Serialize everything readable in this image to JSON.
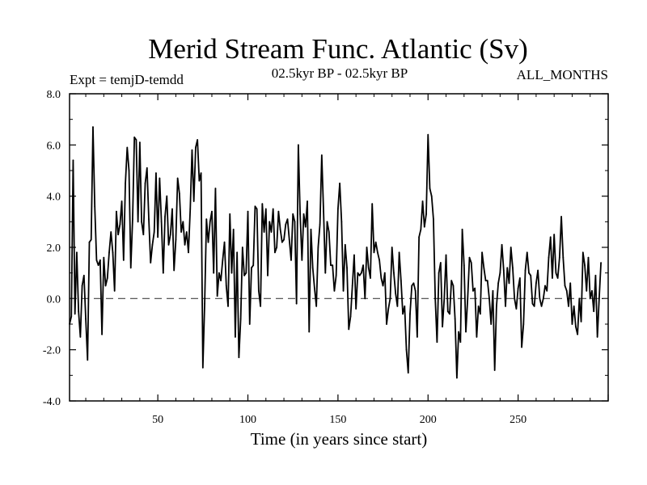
{
  "chart_data": {
    "type": "line",
    "title": "Merid Stream Func. Atlantic (Sv)",
    "subtitle_left": "Expt = temjD-temdd",
    "subtitle_center": "02.5kyr BP - 02.5kyr BP",
    "subtitle_right": "ALL_MONTHS",
    "xlabel": "Time (in years since start)",
    "ylabel": "",
    "xlim": [
      1,
      300
    ],
    "ylim": [
      -4.0,
      8.0
    ],
    "x_ticks": [
      50,
      100,
      150,
      200,
      250
    ],
    "x_tick_labels": [
      "50",
      "100",
      "150",
      "200",
      "250"
    ],
    "y_ticks": [
      -4.0,
      -2.0,
      0.0,
      2.0,
      4.0,
      6.0,
      8.0
    ],
    "y_tick_labels": [
      "-4.0",
      "-2.0",
      "0.0",
      "2.0",
      "4.0",
      "6.0",
      "8.0"
    ],
    "zero_line": 0.0,
    "series": [
      {
        "name": "Merid Stream Func. Atlantic",
        "x_start": 1,
        "values": [
          -1.0,
          -0.7,
          5.4,
          -0.6,
          1.8,
          -0.5,
          -1.5,
          0.5,
          0.9,
          -0.8,
          -2.4,
          2.2,
          2.3,
          6.7,
          3.6,
          1.5,
          1.3,
          1.5,
          -1.4,
          1.6,
          0.5,
          0.8,
          1.8,
          2.6,
          1.8,
          0.3,
          3.4,
          2.5,
          2.9,
          3.8,
          1.5,
          4.5,
          5.9,
          5.0,
          1.2,
          3.1,
          6.3,
          6.2,
          3.0,
          6.1,
          3.0,
          2.5,
          4.5,
          5.1,
          3.1,
          1.4,
          2.1,
          2.6,
          4.9,
          2.4,
          4.7,
          3.0,
          1.0,
          3.2,
          4.0,
          2.1,
          2.5,
          3.5,
          1.1,
          2.3,
          4.7,
          4.1,
          2.6,
          3.0,
          2.1,
          2.6,
          1.8,
          3.5,
          5.8,
          3.8,
          5.9,
          6.2,
          4.6,
          4.9,
          -2.7,
          -0.2,
          3.1,
          2.2,
          3.0,
          3.4,
          1.0,
          4.3,
          0.1,
          1.0,
          0.7,
          1.5,
          2.2,
          0.5,
          -0.3,
          3.3,
          1.0,
          2.7,
          -1.5,
          1.8,
          -2.3,
          -0.8,
          2.0,
          0.9,
          1.0,
          3.4,
          -1.0,
          1.2,
          1.3,
          3.6,
          3.5,
          0.3,
          -0.3,
          3.7,
          2.6,
          3.5,
          0.9,
          3.0,
          2.6,
          3.5,
          1.8,
          2.0,
          3.4,
          2.7,
          2.2,
          2.3,
          2.9,
          3.1,
          2.3,
          1.5,
          3.3,
          3.0,
          -0.2,
          6.0,
          3.3,
          1.5,
          3.3,
          2.8,
          3.8,
          -1.3,
          2.7,
          1.2,
          0.4,
          -0.3,
          2.0,
          2.9,
          5.6,
          3.4,
          1.0,
          3.0,
          2.6,
          1.3,
          1.3,
          0.3,
          0.9,
          3.5,
          4.5,
          3.0,
          0.3,
          2.1,
          1.2,
          -1.2,
          -0.7,
          0.5,
          1.7,
          -0.4,
          1.0,
          0.9,
          1.0,
          1.3,
          0.0,
          2.0,
          1.2,
          0.8,
          3.7,
          1.8,
          2.2,
          1.8,
          1.5,
          0.8,
          0.5,
          1.0,
          -1.0,
          -0.4,
          0.0,
          2.0,
          1.0,
          0.2,
          -0.3,
          1.8,
          0.7,
          -0.6,
          -0.3,
          -2.0,
          -2.9,
          -0.6,
          0.5,
          0.6,
          0.3,
          -1.5,
          2.4,
          2.7,
          3.8,
          2.8,
          3.3,
          6.4,
          4.3,
          4.0,
          3.1,
          0.0,
          -1.7,
          1.0,
          1.4,
          -1.1,
          0.0,
          1.7,
          -0.5,
          -0.6,
          0.7,
          0.5,
          -0.8,
          -3.1,
          -1.3,
          -1.7,
          2.7,
          1.3,
          -1.3,
          0.0,
          1.6,
          1.4,
          0.3,
          0.4,
          -1.5,
          -0.3,
          -0.6,
          1.8,
          1.2,
          0.7,
          0.7,
          0.0,
          -1.0,
          0.3,
          -2.8,
          -0.3,
          0.6,
          1.0,
          2.1,
          1.1,
          -0.3,
          1.2,
          0.6,
          2.0,
          1.2,
          0.0,
          -0.4,
          0.4,
          0.8,
          -1.9,
          -1.0,
          1.1,
          1.8,
          1.0,
          0.9,
          -0.2,
          -0.3,
          0.6,
          1.1,
          0.0,
          -0.3,
          0.0,
          0.5,
          0.3,
          1.6,
          2.4,
          0.8,
          2.5,
          1.0,
          0.8,
          1.6,
          3.2,
          1.6,
          0.5,
          0.3,
          -0.3,
          0.6,
          -1.0,
          -0.3,
          -1.1,
          -1.4,
          0.0,
          -0.9,
          1.8,
          1.3,
          0.3,
          1.6,
          0.0,
          0.3,
          -0.5,
          0.9,
          -1.5,
          0.0,
          1.4
        ]
      }
    ]
  }
}
